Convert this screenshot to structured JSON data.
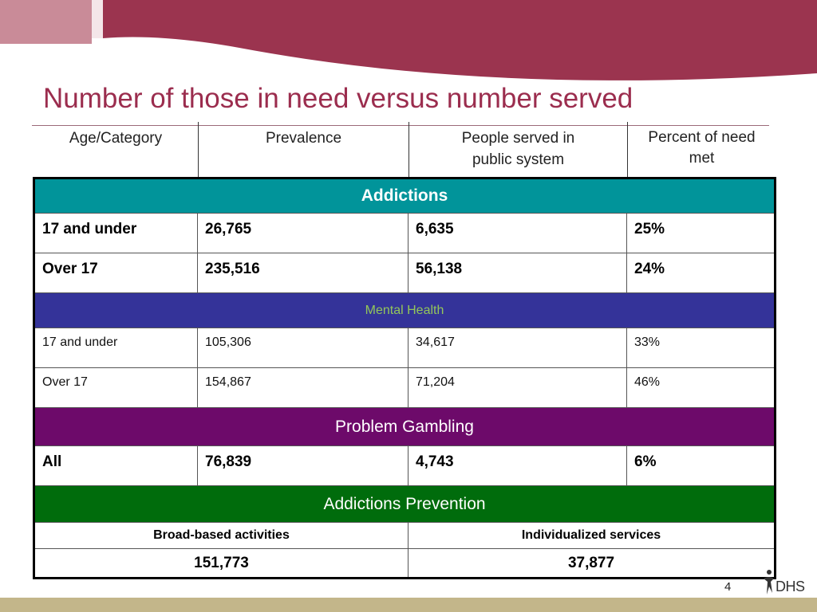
{
  "slide": {
    "title": "Number of those in need versus number served",
    "page_number": "4",
    "logo_text": "DHS"
  },
  "header": {
    "col1": "Age/Category",
    "col2": "Prevalence",
    "col3_line1": "People served in",
    "col3_line2": "public system",
    "col4_line1": "Percent of need",
    "col4_line2": "met"
  },
  "sections": {
    "addictions": {
      "title": "Addictions",
      "rows": [
        {
          "category": "17 and under",
          "prevalence": "26,765",
          "served": "6,635",
          "percent": "25%"
        },
        {
          "category": "Over 17",
          "prevalence": "235,516",
          "served": "56,138",
          "percent": "24%"
        }
      ]
    },
    "mental_health": {
      "title": "Mental Health",
      "rows": [
        {
          "category": "17 and under",
          "prevalence": "105,306",
          "served": "34,617",
          "percent": "33%"
        },
        {
          "category": "Over 17",
          "prevalence": "154,867",
          "served": "71,204",
          "percent": "46%"
        }
      ]
    },
    "problem_gambling": {
      "title": "Problem Gambling",
      "rows": [
        {
          "category": "All",
          "prevalence": "76,839",
          "served": "4,743",
          "percent": "6%"
        }
      ]
    },
    "addictions_prevention": {
      "title": "Addictions Prevention",
      "col_left": "Broad-based activities",
      "col_right": "Individualized services",
      "val_left": "151,773",
      "val_right": "37,877"
    }
  },
  "colors": {
    "title": "#9b2d4e",
    "banner": "#9b2d4e",
    "addictions": "#01949a",
    "mental_health": "#343399",
    "mental_health_text": "#93c65a",
    "problem_gambling": "#6d0a6a",
    "addictions_prevention": "#006c0c",
    "footer": "#c3b68a"
  }
}
